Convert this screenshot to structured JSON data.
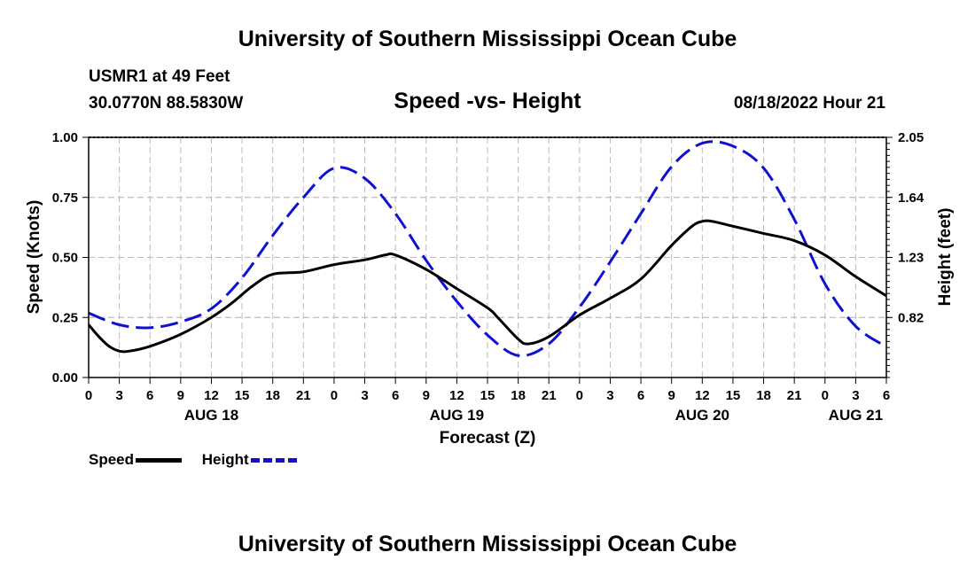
{
  "header": {
    "title": "University of Southern Mississippi Ocean Cube",
    "station": "USMR1 at 49 Feet",
    "coordinates": "30.0770N  88.5830W",
    "timestamp": "08/18/2022 Hour 21"
  },
  "footer": {
    "title": "University of Southern Mississippi Ocean Cube"
  },
  "legend": {
    "speed_label": "Speed",
    "height_label": "Height"
  },
  "colors": {
    "speed": "#000000",
    "height": "#1010d0",
    "grid": "#bbbbbb"
  },
  "chart_data": {
    "type": "line",
    "title": "Speed -vs- Height",
    "xlabel": "Forecast (Z)",
    "ylabel": "Speed (Knots)",
    "y2label": "Height (feet)",
    "grid": true,
    "legend_position": "bottom-left",
    "x_range_hours": [
      0,
      78
    ],
    "x_ticks": [
      {
        "h": 0,
        "label": "0"
      },
      {
        "h": 3,
        "label": "3"
      },
      {
        "h": 6,
        "label": "6"
      },
      {
        "h": 9,
        "label": "9"
      },
      {
        "h": 12,
        "label": "12"
      },
      {
        "h": 15,
        "label": "15"
      },
      {
        "h": 18,
        "label": "18"
      },
      {
        "h": 21,
        "label": "21"
      },
      {
        "h": 24,
        "label": "0"
      },
      {
        "h": 27,
        "label": "3"
      },
      {
        "h": 30,
        "label": "6"
      },
      {
        "h": 33,
        "label": "9"
      },
      {
        "h": 36,
        "label": "12"
      },
      {
        "h": 39,
        "label": "15"
      },
      {
        "h": 42,
        "label": "18"
      },
      {
        "h": 45,
        "label": "21"
      },
      {
        "h": 48,
        "label": "0"
      },
      {
        "h": 51,
        "label": "3"
      },
      {
        "h": 54,
        "label": "6"
      },
      {
        "h": 57,
        "label": "9"
      },
      {
        "h": 60,
        "label": "12"
      },
      {
        "h": 63,
        "label": "15"
      },
      {
        "h": 66,
        "label": "18"
      },
      {
        "h": 69,
        "label": "21"
      },
      {
        "h": 72,
        "label": "0"
      },
      {
        "h": 75,
        "label": "3"
      },
      {
        "h": 78,
        "label": "6"
      }
    ],
    "day_labels": [
      {
        "h": 12,
        "label": "AUG 18"
      },
      {
        "h": 36,
        "label": "AUG 19"
      },
      {
        "h": 60,
        "label": "AUG 20"
      },
      {
        "h": 75,
        "label": "AUG 21"
      }
    ],
    "y_axis": {
      "min": 0,
      "max": 1,
      "ticks": [
        {
          "v": 0,
          "label": "0.00"
        },
        {
          "v": 0.25,
          "label": "0.25"
        },
        {
          "v": 0.5,
          "label": "0.50"
        },
        {
          "v": 0.75,
          "label": "0.75"
        },
        {
          "v": 1,
          "label": "1.00"
        }
      ]
    },
    "y2_axis": {
      "min": 0.41,
      "max": 2.05,
      "ticks": [
        {
          "v": 0.82,
          "label": "0.82"
        },
        {
          "v": 1.23,
          "label": "1.23"
        },
        {
          "v": 1.64,
          "label": "1.64"
        },
        {
          "v": 2.05,
          "label": "2.05"
        }
      ]
    },
    "series": [
      {
        "name": "Speed",
        "axis": "left",
        "style": "solid",
        "x": [
          0,
          1,
          2,
          3,
          4,
          6,
          9,
          12,
          14,
          16,
          18,
          21,
          24,
          27,
          29,
          30,
          33,
          36,
          39,
          40,
          42,
          43,
          45,
          48,
          51,
          54,
          57,
          59,
          60,
          61,
          63,
          66,
          69,
          72,
          75,
          78
        ],
        "values": [
          0.22,
          0.17,
          0.13,
          0.11,
          0.11,
          0.13,
          0.18,
          0.25,
          0.31,
          0.38,
          0.43,
          0.44,
          0.47,
          0.49,
          0.51,
          0.51,
          0.45,
          0.37,
          0.29,
          0.25,
          0.16,
          0.14,
          0.17,
          0.26,
          0.33,
          0.41,
          0.55,
          0.63,
          0.65,
          0.65,
          0.63,
          0.6,
          0.57,
          0.51,
          0.42,
          0.34
        ]
      },
      {
        "name": "Height",
        "axis": "right",
        "style": "dashed",
        "x": [
          0,
          3,
          6,
          9,
          12,
          15,
          18,
          21,
          24,
          27,
          30,
          33,
          36,
          39,
          42,
          45,
          48,
          51,
          54,
          57,
          60,
          63,
          66,
          69,
          72,
          75,
          78
        ],
        "values": [
          0.85,
          0.77,
          0.75,
          0.79,
          0.88,
          1.09,
          1.38,
          1.64,
          1.84,
          1.77,
          1.53,
          1.21,
          0.93,
          0.7,
          0.56,
          0.64,
          0.89,
          1.2,
          1.53,
          1.85,
          2.01,
          1.99,
          1.84,
          1.49,
          1.05,
          0.76,
          0.62
        ]
      }
    ]
  }
}
